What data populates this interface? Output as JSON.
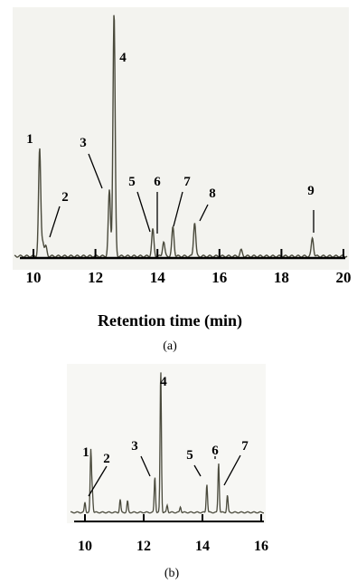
{
  "chart_data": [
    {
      "id": "a",
      "type": "line",
      "panel_label": "(a)",
      "xlabel": "Retention time (min)",
      "ylabel": "",
      "xlim": [
        10,
        20
      ],
      "x_ticks": [
        10,
        12,
        14,
        16,
        18,
        20
      ],
      "peaks": [
        {
          "label": "1",
          "x": 10.2,
          "height": 0.44
        },
        {
          "label": "2",
          "x": 10.3,
          "height": 0.06
        },
        {
          "label": "",
          "x": 10.4,
          "height": 0.04
        },
        {
          "label": "3",
          "x": 12.45,
          "height": 0.27
        },
        {
          "label": "4",
          "x": 12.6,
          "height": 1.0
        },
        {
          "label": "5",
          "x": 13.85,
          "height": 0.11
        },
        {
          "label": "6",
          "x": 14.2,
          "height": 0.06
        },
        {
          "label": "7",
          "x": 14.5,
          "height": 0.12
        },
        {
          "label": "8",
          "x": 15.2,
          "height": 0.14
        },
        {
          "label": "",
          "x": 16.7,
          "height": 0.025
        },
        {
          "label": "9",
          "x": 19.0,
          "height": 0.075
        }
      ]
    },
    {
      "id": "b",
      "type": "line",
      "panel_label": "(b)",
      "xlabel": "",
      "ylabel": "",
      "xlim": [
        10,
        16
      ],
      "x_ticks": [
        10,
        12,
        14,
        16
      ],
      "peaks": [
        {
          "label": "",
          "x": 10.0,
          "height": 0.07
        },
        {
          "label": "1",
          "x": 10.2,
          "height": 0.43
        },
        {
          "label": "2",
          "x": 10.25,
          "height": 0.15
        },
        {
          "label": "",
          "x": 11.2,
          "height": 0.09
        },
        {
          "label": "",
          "x": 11.45,
          "height": 0.08
        },
        {
          "label": "3",
          "x": 12.38,
          "height": 0.25
        },
        {
          "label": "4",
          "x": 12.58,
          "height": 1.0
        },
        {
          "label": "",
          "x": 12.8,
          "height": 0.05
        },
        {
          "label": "",
          "x": 13.25,
          "height": 0.04
        },
        {
          "label": "5",
          "x": 14.15,
          "height": 0.2
        },
        {
          "label": "6",
          "x": 14.55,
          "height": 0.35
        },
        {
          "label": "7",
          "x": 14.85,
          "height": 0.12
        }
      ]
    }
  ]
}
